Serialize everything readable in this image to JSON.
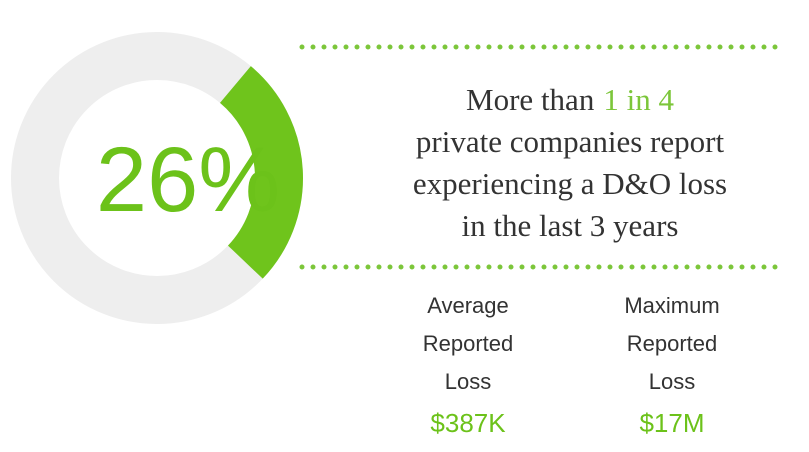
{
  "chart_data": {
    "type": "donut",
    "values": [
      26
    ],
    "value_labels": [
      "26%"
    ],
    "color": "#6fc41c",
    "track_color": "#eeeeee"
  },
  "headline": {
    "lead": "More than",
    "highlight": "1 in 4",
    "rest": [
      "private companies report",
      "experiencing a D&O loss",
      "in the last 3 years"
    ]
  },
  "stats": [
    {
      "label": [
        "Average",
        "Reported",
        "Loss"
      ],
      "value": "$387K"
    },
    {
      "label": [
        "Maximum",
        "Reported",
        "Loss"
      ],
      "value": "$17M"
    }
  ]
}
